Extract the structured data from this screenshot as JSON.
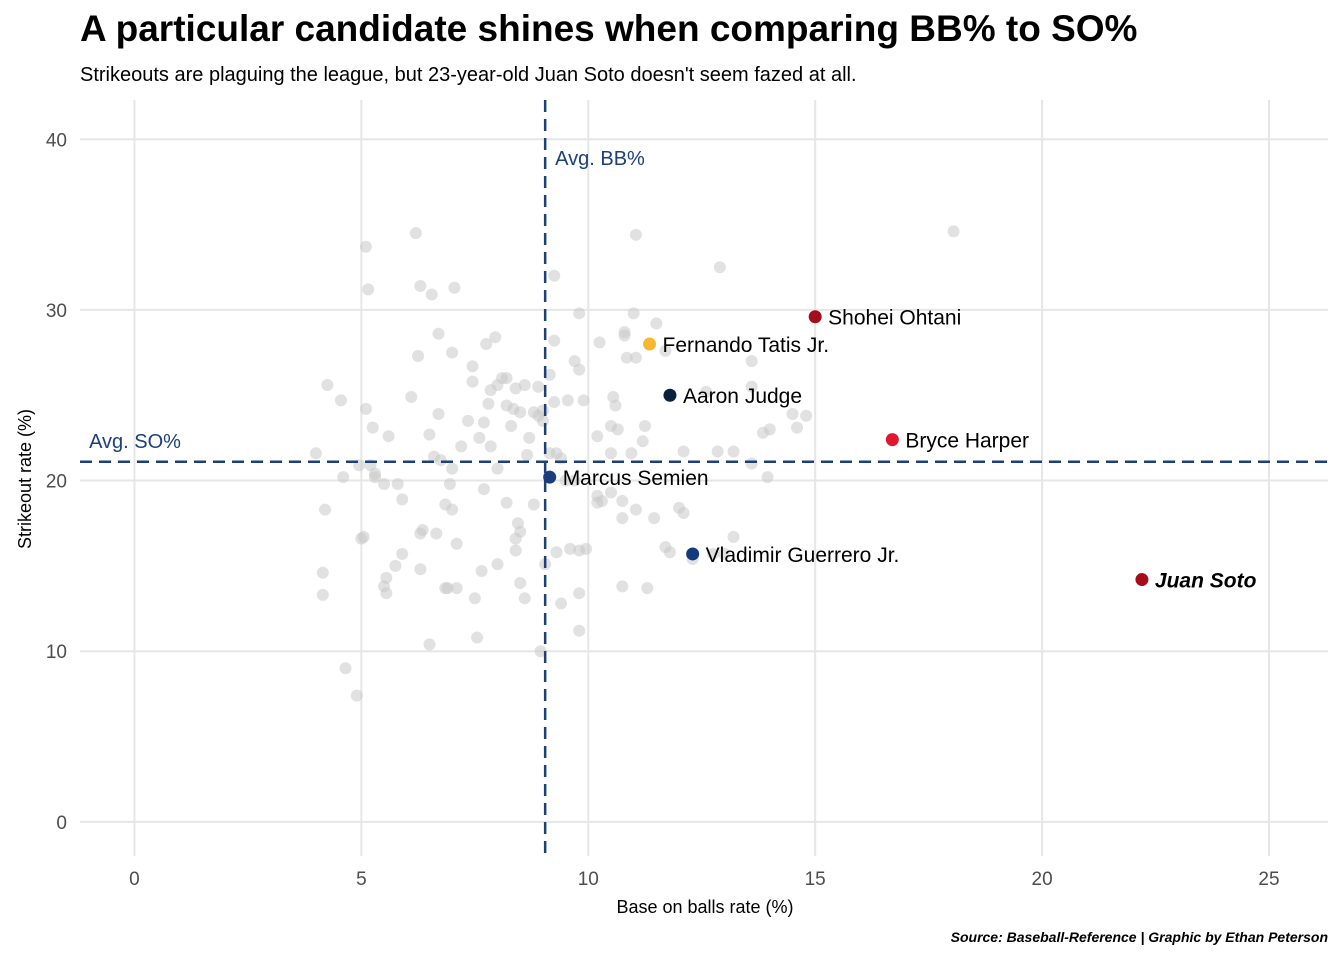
{
  "title": "A particular candidate shines when comparing BB% to SO%",
  "subtitle": "Strikeouts are plaguing the league, but 23-year-old Juan Soto doesn't seem fazed at all.",
  "caption": "Source: Baseball-Reference | Graphic by Ethan Peterson",
  "chart_data": {
    "type": "scatter",
    "title": "A particular candidate shines when comparing BB% to SO%",
    "subtitle": "Strikeouts are plaguing the league, but 23-year-old Juan Soto doesn't seem fazed at all.",
    "xlabel": "Base on balls rate (%)",
    "ylabel": "Strikeout rate (%)",
    "xlim": [
      -1.2,
      26.3
    ],
    "ylim": [
      -2,
      42.3
    ],
    "xticks": [
      0,
      5,
      10,
      15,
      20,
      25
    ],
    "yticks": [
      0,
      10,
      20,
      30,
      40
    ],
    "grid": true,
    "reference_lines": [
      {
        "axis": "x",
        "value": 9.05,
        "label": "Avg. BB%",
        "color": "#1d3f7a",
        "style": "dashed"
      },
      {
        "axis": "y",
        "value": 21.1,
        "label": "Avg. SO%",
        "color": "#1d3f7a",
        "style": "dashed"
      }
    ],
    "highlighted": [
      {
        "name": "Shohei Ohtani",
        "x": 15.0,
        "y": 29.6,
        "color": "#a50d1a",
        "bold": false
      },
      {
        "name": "Fernando Tatis Jr.",
        "x": 11.35,
        "y": 28.0,
        "color": "#f5b82e",
        "bold": false
      },
      {
        "name": "Aaron Judge",
        "x": 11.8,
        "y": 25.0,
        "color": "#0c1f3d",
        "bold": false
      },
      {
        "name": "Bryce Harper",
        "x": 16.7,
        "y": 22.4,
        "color": "#e1162f",
        "bold": false
      },
      {
        "name": "Marcus Semien",
        "x": 9.15,
        "y": 20.2,
        "color": "#1b3d7d",
        "bold": false
      },
      {
        "name": "Vladimir Guerrero Jr.",
        "x": 12.3,
        "y": 15.7,
        "color": "#133a7a",
        "bold": false
      },
      {
        "name": "Juan Soto",
        "x": 22.2,
        "y": 14.2,
        "color": "#a50d1a",
        "bold": true
      }
    ],
    "background_points": [
      [
        4.0,
        21.6
      ],
      [
        4.15,
        14.6
      ],
      [
        4.15,
        13.3
      ],
      [
        4.2,
        18.3
      ],
      [
        4.25,
        25.6
      ],
      [
        4.55,
        24.7
      ],
      [
        4.6,
        20.2
      ],
      [
        4.65,
        9.0
      ],
      [
        4.9,
        7.4
      ],
      [
        4.95,
        20.9
      ],
      [
        5.0,
        16.6
      ],
      [
        5.05,
        16.7
      ],
      [
        5.1,
        33.7
      ],
      [
        5.1,
        24.2
      ],
      [
        5.15,
        31.2
      ],
      [
        5.2,
        20.9
      ],
      [
        5.25,
        23.1
      ],
      [
        5.3,
        20.4
      ],
      [
        5.3,
        20.2
      ],
      [
        5.5,
        19.8
      ],
      [
        5.5,
        13.8
      ],
      [
        5.55,
        14.3
      ],
      [
        5.55,
        13.4
      ],
      [
        5.6,
        22.6
      ],
      [
        5.75,
        15.0
      ],
      [
        5.8,
        19.8
      ],
      [
        5.9,
        18.9
      ],
      [
        5.9,
        15.7
      ],
      [
        6.1,
        24.9
      ],
      [
        6.2,
        34.5
      ],
      [
        6.25,
        27.3
      ],
      [
        6.3,
        31.4
      ],
      [
        6.3,
        16.9
      ],
      [
        6.35,
        17.1
      ],
      [
        6.3,
        14.8
      ],
      [
        6.5,
        22.7
      ],
      [
        6.5,
        10.4
      ],
      [
        6.55,
        30.9
      ],
      [
        6.6,
        21.4
      ],
      [
        6.65,
        16.9
      ],
      [
        6.7,
        28.6
      ],
      [
        6.7,
        23.9
      ],
      [
        6.75,
        21.2
      ],
      [
        6.85,
        18.6
      ],
      [
        6.85,
        13.7
      ],
      [
        6.9,
        13.7
      ],
      [
        6.95,
        19.8
      ],
      [
        7.0,
        27.5
      ],
      [
        7.0,
        20.7
      ],
      [
        7.0,
        18.3
      ],
      [
        7.05,
        31.3
      ],
      [
        7.1,
        16.3
      ],
      [
        7.1,
        13.7
      ],
      [
        7.2,
        22.0
      ],
      [
        7.35,
        23.5
      ],
      [
        7.45,
        26.7
      ],
      [
        7.45,
        25.8
      ],
      [
        7.5,
        13.1
      ],
      [
        7.55,
        10.8
      ],
      [
        7.6,
        22.5
      ],
      [
        7.65,
        14.7
      ],
      [
        7.7,
        23.4
      ],
      [
        7.7,
        19.5
      ],
      [
        7.75,
        28.0
      ],
      [
        7.8,
        24.5
      ],
      [
        7.85,
        25.3
      ],
      [
        7.85,
        22.0
      ],
      [
        7.95,
        28.4
      ],
      [
        8.0,
        25.6
      ],
      [
        8.0,
        20.7
      ],
      [
        8.0,
        15.1
      ],
      [
        8.1,
        26.0
      ],
      [
        8.2,
        26.0
      ],
      [
        8.2,
        24.4
      ],
      [
        8.2,
        18.7
      ],
      [
        8.3,
        23.2
      ],
      [
        8.35,
        24.2
      ],
      [
        8.4,
        25.4
      ],
      [
        8.4,
        16.6
      ],
      [
        8.4,
        15.9
      ],
      [
        8.45,
        17.5
      ],
      [
        8.5,
        24.0
      ],
      [
        8.5,
        17.0
      ],
      [
        8.5,
        14.0
      ],
      [
        8.6,
        25.6
      ],
      [
        8.6,
        13.1
      ],
      [
        8.65,
        21.5
      ],
      [
        8.7,
        22.5
      ],
      [
        8.8,
        24.0
      ],
      [
        8.8,
        18.6
      ],
      [
        8.9,
        25.5
      ],
      [
        8.9,
        23.8
      ],
      [
        8.95,
        10.0
      ],
      [
        9.0,
        24.1
      ],
      [
        9.0,
        23.5
      ],
      [
        9.05,
        15.1
      ],
      [
        9.15,
        26.2
      ],
      [
        9.15,
        21.6
      ],
      [
        9.25,
        32.0
      ],
      [
        9.25,
        28.2
      ],
      [
        9.25,
        24.6
      ],
      [
        9.3,
        21.6
      ],
      [
        9.3,
        15.8
      ],
      [
        9.4,
        21.3
      ],
      [
        9.4,
        12.8
      ],
      [
        9.5,
        20.0
      ],
      [
        9.55,
        24.7
      ],
      [
        9.6,
        16.0
      ],
      [
        9.7,
        27.0
      ],
      [
        9.7,
        20.0
      ],
      [
        9.8,
        29.8
      ],
      [
        9.8,
        26.5
      ],
      [
        9.8,
        15.9
      ],
      [
        9.8,
        13.4
      ],
      [
        9.8,
        11.2
      ],
      [
        9.9,
        24.7
      ],
      [
        9.95,
        16.0
      ],
      [
        10.2,
        19.1
      ],
      [
        10.2,
        18.7
      ],
      [
        10.2,
        22.6
      ],
      [
        10.25,
        28.1
      ],
      [
        10.3,
        18.8
      ],
      [
        10.5,
        23.2
      ],
      [
        10.5,
        21.6
      ],
      [
        10.5,
        19.3
      ],
      [
        10.55,
        24.9
      ],
      [
        10.6,
        24.4
      ],
      [
        10.65,
        23.0
      ],
      [
        10.75,
        18.8
      ],
      [
        10.75,
        17.8
      ],
      [
        10.75,
        13.8
      ],
      [
        10.8,
        28.5
      ],
      [
        10.8,
        28.7
      ],
      [
        10.85,
        27.2
      ],
      [
        10.95,
        21.6
      ],
      [
        11.0,
        29.8
      ],
      [
        11.05,
        34.4
      ],
      [
        11.05,
        27.2
      ],
      [
        11.05,
        18.3
      ],
      [
        11.2,
        22.3
      ],
      [
        11.25,
        23.2
      ],
      [
        11.3,
        13.7
      ],
      [
        11.45,
        17.8
      ],
      [
        11.5,
        29.2
      ],
      [
        11.7,
        27.6
      ],
      [
        11.7,
        16.1
      ],
      [
        11.8,
        15.8
      ],
      [
        12.0,
        18.4
      ],
      [
        12.1,
        18.1
      ],
      [
        12.1,
        21.7
      ],
      [
        12.3,
        15.4
      ],
      [
        12.6,
        25.2
      ],
      [
        12.75,
        15.7
      ],
      [
        12.85,
        21.7
      ],
      [
        12.9,
        32.5
      ],
      [
        13.0,
        15.7
      ],
      [
        13.2,
        21.7
      ],
      [
        13.2,
        16.7
      ],
      [
        13.6,
        27.0
      ],
      [
        13.6,
        25.5
      ],
      [
        13.6,
        21.0
      ],
      [
        13.85,
        22.8
      ],
      [
        13.95,
        20.2
      ],
      [
        14.0,
        23.0
      ],
      [
        14.5,
        23.9
      ],
      [
        14.6,
        23.1
      ],
      [
        14.8,
        23.8
      ],
      [
        18.05,
        34.6
      ]
    ]
  }
}
